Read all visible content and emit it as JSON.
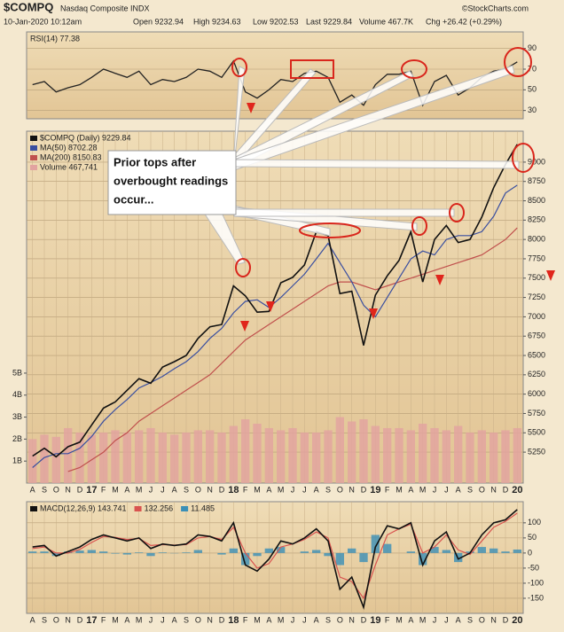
{
  "header": {
    "symbol": "$COMPQ",
    "name": "Nasdaq Composite INDX",
    "source": "©StockCharts.com",
    "date": "10-Jan-2020 10:12am",
    "open": "Open 9232.94",
    "high": "High 9234.63",
    "low": "Low 9202.53",
    "last": "Last 9229.84",
    "volume": "Volume 467.7K",
    "change": "Chg +26.42 (+0.29%)"
  },
  "chart_data": [
    {
      "type": "line",
      "title": "RSI(14) 77.38",
      "color": "#222222",
      "values": [
        55,
        58,
        48,
        52,
        55,
        62,
        70,
        66,
        62,
        68,
        55,
        60,
        58,
        62,
        70,
        68,
        62,
        78,
        48,
        42,
        50,
        60,
        58,
        66,
        68,
        62,
        38,
        45,
        35,
        55,
        65,
        65,
        68,
        35,
        58,
        64,
        45,
        52,
        62,
        68,
        70,
        77
      ],
      "ylim": [
        22,
        106
      ],
      "yticks": [
        30,
        50,
        70,
        90
      ],
      "grid": true
    },
    {
      "type": "line",
      "categories": [
        "A",
        "S",
        "O",
        "N",
        "D",
        "17",
        "F",
        "M",
        "A",
        "M",
        "J",
        "J",
        "A",
        "S",
        "O",
        "N",
        "D",
        "18",
        "F",
        "M",
        "A",
        "M",
        "J",
        "J",
        "A",
        "S",
        "O",
        "N",
        "D",
        "19",
        "F",
        "M",
        "A",
        "M",
        "J",
        "J",
        "A",
        "S",
        "O",
        "N",
        "D",
        "20"
      ],
      "series": [
        {
          "name": "Volume 467,741",
          "color": "#e2a3a0",
          "type": "bar",
          "axis": "y2",
          "values": [
            2.0,
            2.2,
            2.1,
            2.5,
            2.3,
            2.2,
            2.3,
            2.4,
            2.3,
            2.4,
            2.5,
            2.3,
            2.2,
            2.3,
            2.4,
            2.4,
            2.3,
            2.6,
            2.9,
            2.7,
            2.5,
            2.4,
            2.5,
            2.3,
            2.3,
            2.4,
            3.0,
            2.8,
            2.9,
            2.6,
            2.5,
            2.5,
            2.4,
            2.7,
            2.5,
            2.4,
            2.6,
            2.3,
            2.4,
            2.3,
            2.4,
            2.5
          ]
        },
        {
          "name": "MA(200) 8150.83",
          "color": "#c0504d",
          "values": [
            null,
            null,
            null,
            5000,
            5050,
            5150,
            5250,
            5400,
            5500,
            5650,
            5750,
            5850,
            5950,
            6050,
            6150,
            6250,
            6400,
            6550,
            6700,
            6800,
            6900,
            7000,
            7100,
            7200,
            7300,
            7400,
            7450,
            7450,
            7400,
            7350,
            7400,
            7450,
            7500,
            7550,
            7600,
            7650,
            7700,
            7750,
            7800,
            7900,
            8000,
            8150
          ]
        },
        {
          "name": "MA(50) 8702.28",
          "color": "#3a4fa0",
          "values": [
            5050,
            5180,
            5230,
            5230,
            5300,
            5450,
            5650,
            5800,
            5930,
            6080,
            6150,
            6230,
            6330,
            6420,
            6550,
            6720,
            6850,
            7050,
            7200,
            7220,
            7120,
            7250,
            7400,
            7550,
            7750,
            7950,
            7700,
            7450,
            7150,
            7000,
            7250,
            7500,
            7750,
            7850,
            7800,
            8000,
            8050,
            8050,
            8100,
            8300,
            8600,
            8702
          ]
        },
        {
          "name": "$COMPQ (Daily) 9229.84",
          "color": "#111111",
          "values": [
            5200,
            5300,
            5190,
            5320,
            5380,
            5600,
            5820,
            5900,
            6050,
            6200,
            6140,
            6350,
            6420,
            6500,
            6720,
            6870,
            6900,
            7400,
            7270,
            7060,
            7070,
            7440,
            7510,
            7670,
            8100,
            8050,
            7300,
            7330,
            6630,
            7280,
            7530,
            7730,
            8100,
            7450,
            8000,
            8180,
            7960,
            8000,
            8290,
            8670,
            8970,
            9230
          ]
        }
      ],
      "ylim": [
        4850,
        9400
      ],
      "yticks": [
        5250,
        5500,
        5750,
        6000,
        6250,
        6500,
        6750,
        7000,
        7250,
        7500,
        7750,
        8000,
        8250,
        8500,
        8750,
        9000
      ],
      "y2lim": [
        0,
        16
      ],
      "y2ticks": [
        {
          "value": 1,
          "label": "1B"
        },
        {
          "value": 2,
          "label": "2B"
        },
        {
          "value": 3,
          "label": "3B"
        },
        {
          "value": 4,
          "label": "4B"
        },
        {
          "value": 5,
          "label": "5B"
        }
      ],
      "grid": true,
      "annotation": [
        "Prior tops after",
        "overbought readings",
        "occur..."
      ]
    },
    {
      "type": "line",
      "categories": [
        "A",
        "S",
        "O",
        "N",
        "D",
        "17",
        "F",
        "M",
        "A",
        "M",
        "J",
        "J",
        "A",
        "S",
        "O",
        "N",
        "D",
        "18",
        "F",
        "M",
        "A",
        "M",
        "J",
        "J",
        "A",
        "S",
        "O",
        "N",
        "D",
        "19",
        "F",
        "M",
        "A",
        "M",
        "J",
        "J",
        "A",
        "S",
        "O",
        "N",
        "D",
        "20"
      ],
      "series": [
        {
          "name": "11.485",
          "color": "#3a8fb7",
          "type": "bar",
          "values": [
            5,
            5,
            -10,
            5,
            8,
            10,
            5,
            -2,
            -5,
            2,
            -10,
            2,
            -1,
            2,
            10,
            0,
            -5,
            15,
            -40,
            -10,
            15,
            20,
            0,
            5,
            10,
            -10,
            -40,
            15,
            -30,
            60,
            30,
            0,
            5,
            -40,
            20,
            10,
            -30,
            5,
            20,
            15,
            5,
            11.485
          ]
        },
        {
          "name": "132.256",
          "color": "#d9534f",
          "values": [
            15,
            20,
            0,
            0,
            12,
            35,
            55,
            52,
            45,
            48,
            25,
            28,
            26,
            28,
            50,
            55,
            45,
            85,
            0,
            -50,
            -35,
            20,
            30,
            45,
            70,
            50,
            -80,
            -95,
            -150,
            -40,
            60,
            80,
            95,
            0,
            20,
            60,
            10,
            -5,
            40,
            85,
            105,
            132.256
          ]
        },
        {
          "name": "MACD(12,26,9) 143.741",
          "color": "#111111",
          "values": [
            20,
            25,
            -10,
            5,
            20,
            45,
            60,
            50,
            40,
            50,
            15,
            30,
            25,
            30,
            60,
            55,
            40,
            100,
            -40,
            -60,
            -20,
            40,
            30,
            50,
            80,
            40,
            -120,
            -80,
            -180,
            20,
            90,
            80,
            100,
            -40,
            40,
            70,
            -20,
            0,
            60,
            100,
            110,
            143.741
          ]
        }
      ],
      "ylim": [
        -200,
        170
      ],
      "yticks": [
        -150,
        -100,
        -50,
        0,
        50,
        100
      ],
      "grid": true
    }
  ]
}
